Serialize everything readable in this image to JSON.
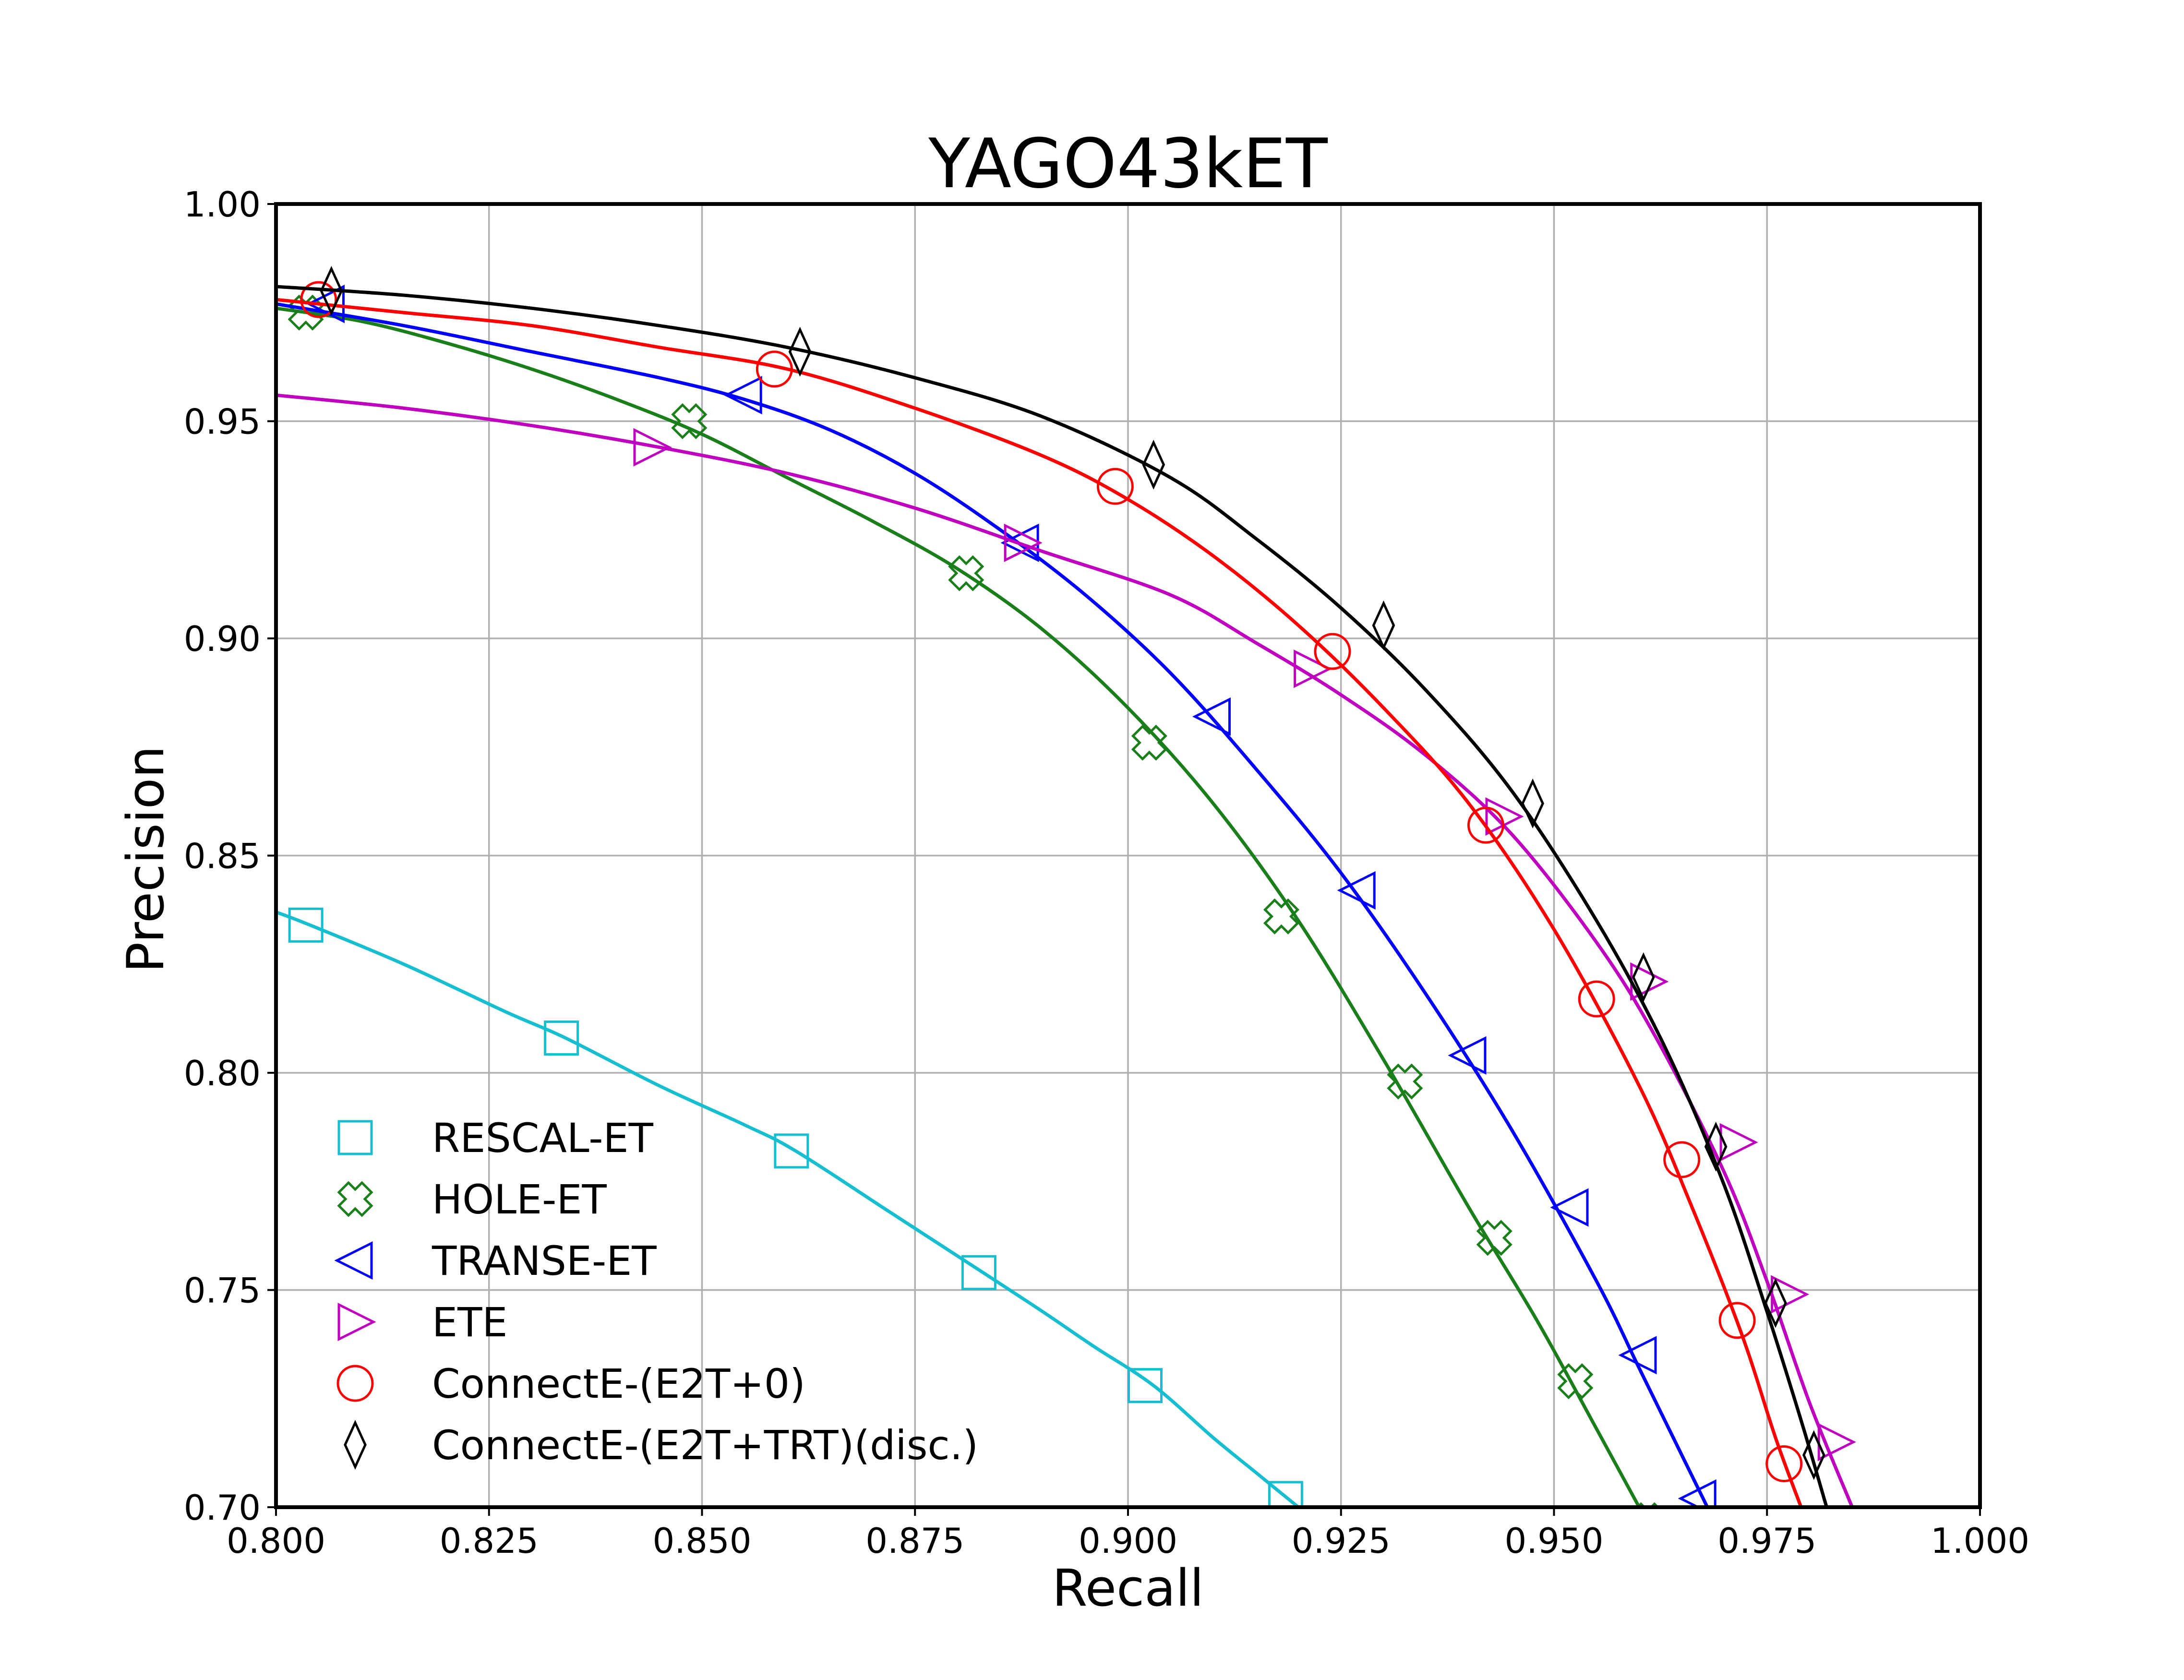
{
  "chart_data": {
    "type": "line",
    "title": "YAGO43kET",
    "xlabel": "Recall",
    "ylabel": "Precision",
    "xlim": [
      0.8,
      1.0
    ],
    "ylim": [
      0.7,
      1.0
    ],
    "grid": true,
    "legend_position": "lower-left",
    "xticks": [
      "0.800",
      "0.825",
      "0.850",
      "0.875",
      "0.900",
      "0.925",
      "0.950",
      "0.975",
      "1.000"
    ],
    "yticks": [
      "0.70",
      "0.75",
      "0.80",
      "0.85",
      "0.90",
      "0.95",
      "1.00"
    ],
    "series": [
      {
        "name": "RESCAL-ET",
        "color": "#17becf",
        "marker": "square",
        "x": [
          0.8,
          0.804,
          0.815,
          0.827,
          0.834,
          0.845,
          0.855,
          0.861,
          0.872,
          0.883,
          0.89,
          0.896,
          0.903,
          0.91,
          0.915,
          0.92
        ],
        "y": [
          0.837,
          0.834,
          0.825,
          0.814,
          0.808,
          0.797,
          0.788,
          0.782,
          0.768,
          0.754,
          0.745,
          0.737,
          0.728,
          0.716,
          0.708,
          0.7
        ],
        "markers_x": [
          0.8035,
          0.8335,
          0.8605,
          0.8825,
          0.902,
          0.9185
        ],
        "markers_y": [
          0.834,
          0.808,
          0.782,
          0.754,
          0.728,
          0.702
        ]
      },
      {
        "name": "HOLE-ET",
        "color": "#1a7f1a",
        "marker": "x-cross",
        "x": [
          0.8,
          0.81,
          0.82,
          0.83,
          0.84,
          0.85,
          0.86,
          0.87,
          0.88,
          0.89,
          0.9,
          0.91,
          0.92,
          0.93,
          0.94,
          0.948,
          0.955,
          0.96
        ],
        "y": [
          0.976,
          0.973,
          0.968,
          0.962,
          0.955,
          0.947,
          0.937,
          0.927,
          0.916,
          0.902,
          0.884,
          0.862,
          0.835,
          0.803,
          0.769,
          0.743,
          0.718,
          0.7
        ],
        "markers_x": [
          0.8035,
          0.8485,
          0.881,
          0.9025,
          0.918,
          0.9325,
          0.943,
          0.9525,
          0.961
        ],
        "markers_y": [
          0.975,
          0.95,
          0.915,
          0.876,
          0.836,
          0.798,
          0.762,
          0.729,
          0.697
        ]
      },
      {
        "name": "TRANSE-ET",
        "color": "#0000ff",
        "marker": "triangle-left",
        "x": [
          0.8,
          0.815,
          0.83,
          0.845,
          0.855,
          0.865,
          0.875,
          0.885,
          0.895,
          0.905,
          0.915,
          0.925,
          0.935,
          0.945,
          0.955,
          0.96,
          0.965,
          0.968
        ],
        "y": [
          0.977,
          0.972,
          0.966,
          0.96,
          0.955,
          0.948,
          0.938,
          0.925,
          0.91,
          0.892,
          0.87,
          0.846,
          0.818,
          0.787,
          0.752,
          0.732,
          0.712,
          0.7
        ],
        "markers_x": [
          0.806,
          0.855,
          0.8875,
          0.91,
          0.927,
          0.94,
          0.952,
          0.96,
          0.967
        ],
        "markers_y": [
          0.977,
          0.956,
          0.922,
          0.882,
          0.842,
          0.804,
          0.769,
          0.735,
          0.702
        ]
      },
      {
        "name": "ETE",
        "color": "#bf00bf",
        "marker": "triangle-right",
        "x": [
          0.8,
          0.815,
          0.83,
          0.845,
          0.86,
          0.875,
          0.89,
          0.905,
          0.915,
          0.925,
          0.935,
          0.945,
          0.955,
          0.962,
          0.97,
          0.975,
          0.98,
          0.985
        ],
        "y": [
          0.956,
          0.953,
          0.949,
          0.944,
          0.938,
          0.93,
          0.92,
          0.91,
          0.899,
          0.887,
          0.873,
          0.855,
          0.83,
          0.808,
          0.777,
          0.752,
          0.724,
          0.7
        ],
        "markers_x": [
          0.844,
          0.8875,
          0.9215,
          0.944,
          0.961,
          0.9715,
          0.9775,
          0.983
        ],
        "markers_y": [
          0.944,
          0.922,
          0.893,
          0.859,
          0.821,
          0.784,
          0.749,
          0.715
        ]
      },
      {
        "name": "ConnectE-(E2T+0)",
        "color": "#ff0000",
        "marker": "circle",
        "x": [
          0.8,
          0.815,
          0.83,
          0.845,
          0.86,
          0.875,
          0.89,
          0.9,
          0.91,
          0.92,
          0.93,
          0.94,
          0.95,
          0.96,
          0.966,
          0.972,
          0.976,
          0.979
        ],
        "y": [
          0.978,
          0.975,
          0.972,
          0.967,
          0.962,
          0.953,
          0.942,
          0.932,
          0.919,
          0.903,
          0.884,
          0.862,
          0.833,
          0.797,
          0.77,
          0.74,
          0.716,
          0.7
        ],
        "markers_x": [
          0.805,
          0.8585,
          0.8985,
          0.924,
          0.942,
          0.955,
          0.965,
          0.9715,
          0.977
        ],
        "markers_y": [
          0.978,
          0.962,
          0.935,
          0.897,
          0.857,
          0.817,
          0.78,
          0.743,
          0.71
        ]
      },
      {
        "name": "ConnectE-(E2T+TRT)(disc.)",
        "color": "#000000",
        "marker": "thin-diamond",
        "x": [
          0.8,
          0.815,
          0.83,
          0.845,
          0.86,
          0.875,
          0.89,
          0.905,
          0.915,
          0.925,
          0.935,
          0.945,
          0.955,
          0.963,
          0.97,
          0.975,
          0.979,
          0.982
        ],
        "y": [
          0.981,
          0.979,
          0.976,
          0.972,
          0.967,
          0.96,
          0.951,
          0.937,
          0.923,
          0.907,
          0.888,
          0.865,
          0.835,
          0.806,
          0.774,
          0.745,
          0.72,
          0.7
        ],
        "markers_x": [
          0.8065,
          0.8615,
          0.903,
          0.93,
          0.9475,
          0.9605,
          0.969,
          0.976,
          0.9805
        ],
        "markers_y": [
          0.98,
          0.966,
          0.94,
          0.903,
          0.862,
          0.822,
          0.783,
          0.747,
          0.712
        ]
      }
    ]
  }
}
